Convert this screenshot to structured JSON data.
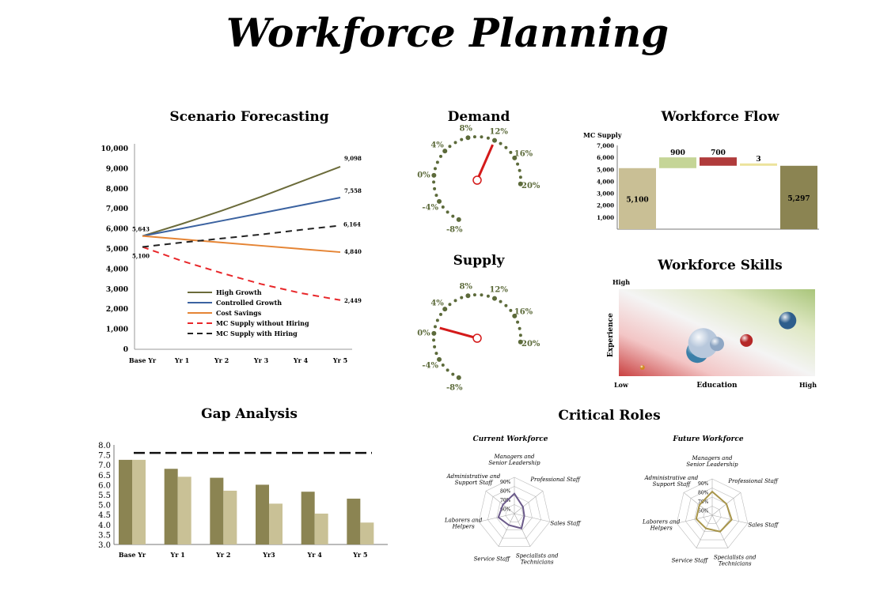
{
  "page": {
    "title": "Workforce Planning"
  },
  "colors": {
    "high_growth": "#6b6b3a",
    "controlled_growth": "#3b62a0",
    "cost_savings": "#e58434",
    "supply_no_hiring": "#e8272a",
    "supply_with_hiring": "#222222",
    "gauge_dot": "#5c6a3a",
    "gauge_needle": "#d41a1a",
    "gap_dark": "#8b8452",
    "gap_light": "#c9c196",
    "radar_current": "#6b5a8a",
    "radar_future": "#a8954a"
  },
  "scenario": {
    "title": "Scenario Forecasting",
    "chart_data": {
      "type": "line",
      "categories": [
        "Base Yr",
        "Yr 1",
        "Yr 2",
        "Yr 3",
        "Yr 4",
        "Yr 5"
      ],
      "yticks": [
        "0",
        "1,000",
        "2,000",
        "3,000",
        "4,000",
        "5,000",
        "6,000",
        "7,000",
        "8,000",
        "9,000",
        "10,000"
      ],
      "ylim": [
        0,
        10000
      ],
      "series": [
        {
          "name": "High Growth",
          "color": "#6b6b3a",
          "dash": "",
          "values": [
            5643,
            6250,
            6900,
            7600,
            8350,
            9098
          ]
        },
        {
          "name": "Controlled Growth",
          "color": "#3b62a0",
          "dash": "",
          "values": [
            5643,
            6020,
            6400,
            6780,
            7170,
            7558
          ]
        },
        {
          "name": "Cost Savings",
          "color": "#e58434",
          "dash": "",
          "values": [
            5643,
            5480,
            5320,
            5160,
            5000,
            4840
          ]
        },
        {
          "name": "MC Supply without Hiring",
          "color": "#e8272a",
          "dash": "8,6",
          "values": [
            5100,
            4400,
            3800,
            3250,
            2800,
            2449
          ]
        },
        {
          "name": "MC Supply with Hiring",
          "color": "#222222",
          "dash": "8,6",
          "values": [
            5100,
            5320,
            5520,
            5720,
            5950,
            6164
          ]
        }
      ],
      "labels": {
        "start_high": "5,643",
        "start_low": "5,100",
        "end_hg": "9,098",
        "end_cg": "7,558",
        "end_swh": "6,164",
        "end_cs": "4,840",
        "end_swoh": "2,449"
      }
    }
  },
  "demand": {
    "title": "Demand",
    "chart_data": {
      "type": "gauge",
      "tick_labels": [
        "-8%",
        "-4%",
        "0%",
        "4%",
        "8%",
        "12%",
        "16%",
        "20%"
      ],
      "min": -8,
      "max": 20,
      "value": 12
    }
  },
  "supply": {
    "title": "Supply",
    "chart_data": {
      "type": "gauge",
      "tick_labels": [
        "-8%",
        "-4%",
        "0%",
        "4%",
        "8%",
        "12%",
        "16%",
        "20%"
      ],
      "min": -8,
      "max": 20,
      "value": 1
    }
  },
  "flow": {
    "title": "Workforce Flow",
    "ylabel": "MC Supply",
    "chart_data": {
      "type": "bar",
      "yticks": [
        "1,000",
        "2,000",
        "3,000",
        "4,000",
        "5,000",
        "6,000",
        "7,000"
      ],
      "ylim": [
        0,
        7000
      ],
      "steps": [
        {
          "label": "5,100",
          "base": 0,
          "value": 5100,
          "color": "#c9bf95"
        },
        {
          "label": "900",
          "base": 5100,
          "value": 900,
          "color": "#c5d597"
        },
        {
          "label": "700",
          "base": 5300,
          "value": 700,
          "color": "#b03b3b"
        },
        {
          "label": "3",
          "base": 5297,
          "value": 3,
          "color": "#ece39c"
        },
        {
          "label": "5,297",
          "base": 0,
          "value": 5297,
          "color": "#8b8452"
        }
      ]
    }
  },
  "skills": {
    "title": "Workforce Skills",
    "xlabel": "Education",
    "ylabel": "Experience",
    "x_low": "Low",
    "x_high": "High",
    "y_high": "High",
    "chart_data": {
      "type": "scatter",
      "points": [
        {
          "x": 0.12,
          "y": 0.1,
          "r": 3,
          "color": "#d08a1e"
        },
        {
          "x": 0.4,
          "y": 0.28,
          "r": 14,
          "color": "#3b7fa8"
        },
        {
          "x": 0.43,
          "y": 0.38,
          "r": 19,
          "color": "#b8c8dc"
        },
        {
          "x": 0.5,
          "y": 0.37,
          "r": 9,
          "color": "#8fa7c4"
        },
        {
          "x": 0.65,
          "y": 0.41,
          "r": 8,
          "color": "#b52828"
        },
        {
          "x": 0.86,
          "y": 0.64,
          "r": 11,
          "color": "#2d5e8c"
        }
      ]
    }
  },
  "gap": {
    "title": "Gap Analysis",
    "chart_data": {
      "type": "bar",
      "categories": [
        "Base Yr",
        "Yr 1",
        "Yr 2",
        "Yr3",
        "Yr 4",
        "Yr 5"
      ],
      "yticks": [
        "3.0",
        "3.5",
        "4.0",
        "4.5",
        "5.0",
        "5.5",
        "6.0",
        "6.5",
        "7.0",
        "7.5",
        "8.0"
      ],
      "ylim": [
        3.0,
        8.0
      ],
      "series": [
        {
          "name": "",
          "values": [
            7.25,
            6.8,
            6.35,
            6.0,
            5.65,
            5.3
          ]
        },
        {
          "name": "",
          "values": [
            7.25,
            6.4,
            5.7,
            5.05,
            4.55,
            4.1
          ]
        }
      ],
      "target": 7.6
    }
  },
  "roles": {
    "title": "Critical Roles",
    "axes": [
      "Managers and Senior Leadership",
      "Professional Staff",
      "Sales Staff",
      "Specialists and Technicians",
      "Service Staff",
      "Laborers and Helpers",
      "Administrative and Support Staff"
    ],
    "rings": [
      "90%",
      "80%",
      "70%",
      "60%"
    ],
    "current": {
      "title": "Current Workforce",
      "values": [
        0.55,
        0.3,
        0.28,
        0.45,
        0.35,
        0.45,
        0.4
      ]
    },
    "future": {
      "title": "Future Workforce",
      "values": [
        0.65,
        0.5,
        0.55,
        0.5,
        0.4,
        0.45,
        0.45
      ]
    }
  }
}
